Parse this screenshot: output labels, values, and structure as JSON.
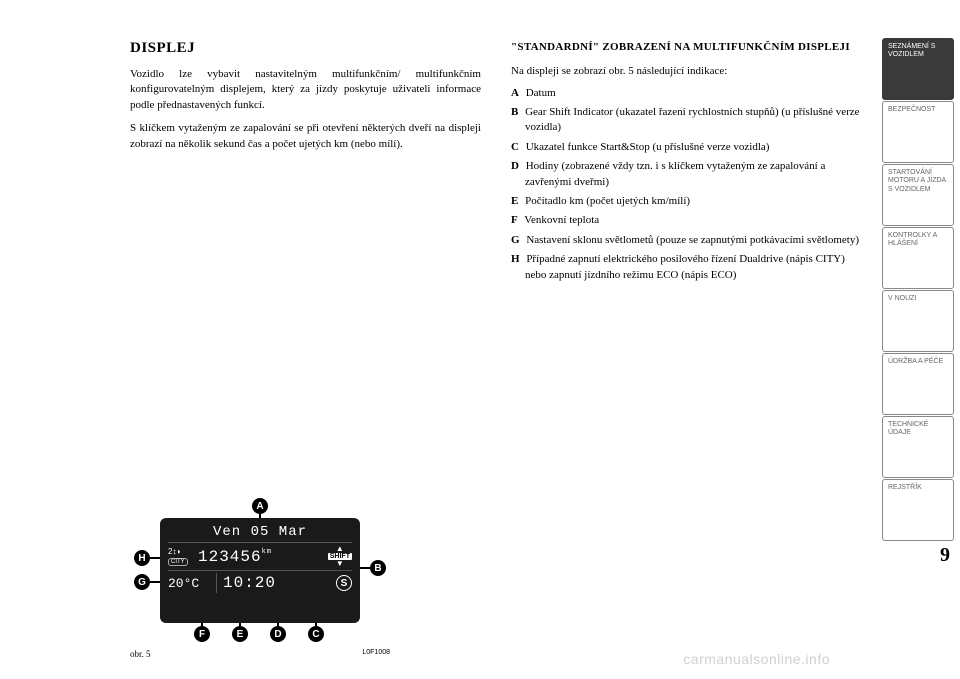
{
  "left": {
    "heading": "DISPLEJ",
    "p1": "Vozidlo lze vybavit nastavitelným multifunkčním/ multifunkčním konfigurovatelným displejem, který za jízdy poskytuje uživateli informace podle přednastavených funkcí.",
    "p2": "S klíčkem vytaženým ze zapalování se při otevření některých dveří na displeji zobrazí na několik sekund čas a počet ujetých km (nebo mílí)."
  },
  "right": {
    "heading": "\"STANDARDNÍ\" ZOBRAZENÍ NA MULTIFUNKČNÍM DISPLEJI",
    "intro": "Na displeji se zobrazí obr. 5 následující indikace:",
    "items": [
      {
        "k": "A",
        "t": "Datum"
      },
      {
        "k": "B",
        "t": "Gear Shift Indicator (ukazatel řazení rychlostních stupňů) (u příslušné verze vozidla)"
      },
      {
        "k": "C",
        "t": "Ukazatel funkce Start&Stop (u příslušné verze vozidla)"
      },
      {
        "k": "D",
        "t": "Hodiny (zobrazené vždy tzn. i s klíčkem vytaženým ze zapalování a zavřenými dveřmi)"
      },
      {
        "k": "E",
        "t": "Počítadlo km (počet ujetých km/mílí)"
      },
      {
        "k": "F",
        "t": "Venkovní teplota"
      },
      {
        "k": "G",
        "t": "Nastavení sklonu světlometů (pouze se zapnutými potkávacími světlomety)"
      },
      {
        "k": "H",
        "t": "Případné zapnutí elektrického posilového řízení Dualdrive (nápis CITY) nebo zapnutí jízdního režimu ECO (nápis ECO)"
      }
    ]
  },
  "figure": {
    "date_line": "Ven 05 Mar",
    "city": "CITY",
    "odometer": "123456",
    "odo_unit": "km",
    "shift": "SHIFT",
    "temp": "20°C",
    "clock": "10:20",
    "s_icon": "S",
    "caption": "obr. 5",
    "code": "L0F1008",
    "markers": {
      "A": "A",
      "B": "B",
      "C": "C",
      "D": "D",
      "E": "E",
      "F": "F",
      "G": "G",
      "H": "H"
    },
    "colors": {
      "screen_bg": "#1a1a1a",
      "screen_fg": "#ffffff",
      "marker_bg": "#000000",
      "marker_fg": "#ffffff"
    }
  },
  "sidebar": {
    "tabs": [
      {
        "label": "SEZNÁMENÍ S VOZIDLEM",
        "active": true
      },
      {
        "label": "BEZPEČNOST",
        "active": false
      },
      {
        "label": "STARTOVÁNÍ MOTORU A JÍZDA S VOZIDLEM",
        "active": false
      },
      {
        "label": "KONTROLKY A HLÁŠENÍ",
        "active": false
      },
      {
        "label": "V NOUZI",
        "active": false
      },
      {
        "label": "ÚDRŽBA A PÉČE",
        "active": false
      },
      {
        "label": "TECHNICKÉ ÚDAJE",
        "active": false
      },
      {
        "label": "REJSTŘÍK",
        "active": false
      }
    ]
  },
  "page_number": "9",
  "watermark": "carmanualsonline.info"
}
